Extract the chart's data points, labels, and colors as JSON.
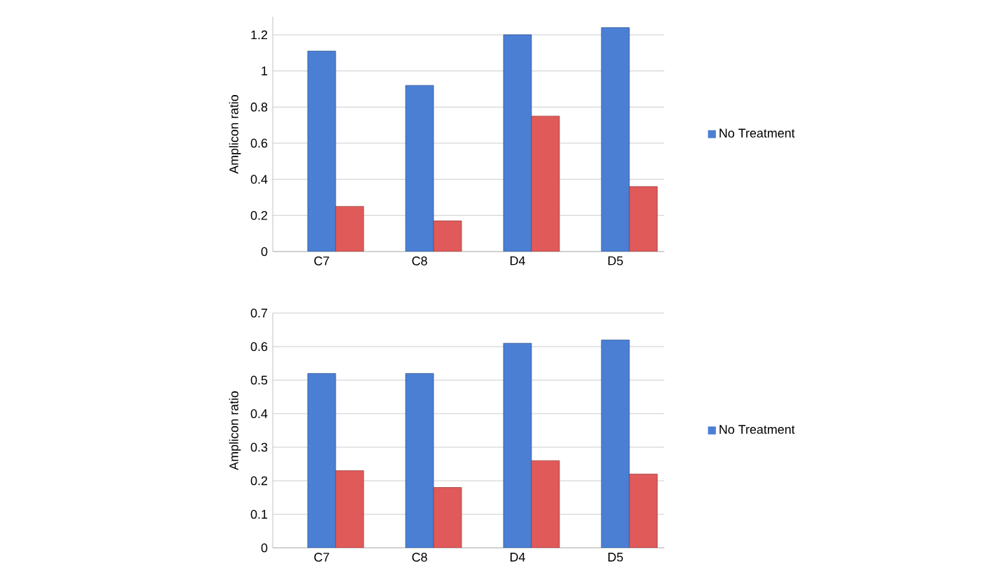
{
  "chart_data": [
    {
      "type": "bar",
      "ylabel": "Amplicon ratio",
      "categories": [
        "C7",
        "C8",
        "D4",
        "D5"
      ],
      "series": [
        {
          "name": "No Treatment",
          "color": "#4a7fd4",
          "values": [
            1.11,
            0.92,
            1.2,
            1.24
          ]
        },
        {
          "color": "#e05a5a",
          "values": [
            0.25,
            0.17,
            0.75,
            0.36
          ]
        }
      ],
      "ylim": [
        0,
        1.3
      ],
      "yticks": [
        0,
        0.2,
        0.4,
        0.6,
        0.8,
        1,
        1.2
      ],
      "grid": "y",
      "legend": "right"
    },
    {
      "type": "bar",
      "ylabel": "Amplicon ratio",
      "categories": [
        "C7",
        "C8",
        "D4",
        "D5"
      ],
      "series": [
        {
          "name": "No Treatment",
          "color": "#4a7fd4",
          "values": [
            0.52,
            0.52,
            0.61,
            0.62
          ]
        },
        {
          "color": "#e05a5a",
          "values": [
            0.23,
            0.18,
            0.26,
            0.22
          ]
        }
      ],
      "ylim": [
        0,
        0.7
      ],
      "yticks": [
        0,
        0.1,
        0.2,
        0.3,
        0.4,
        0.5,
        0.6,
        0.7
      ],
      "grid": "y",
      "legend": "right"
    }
  ]
}
